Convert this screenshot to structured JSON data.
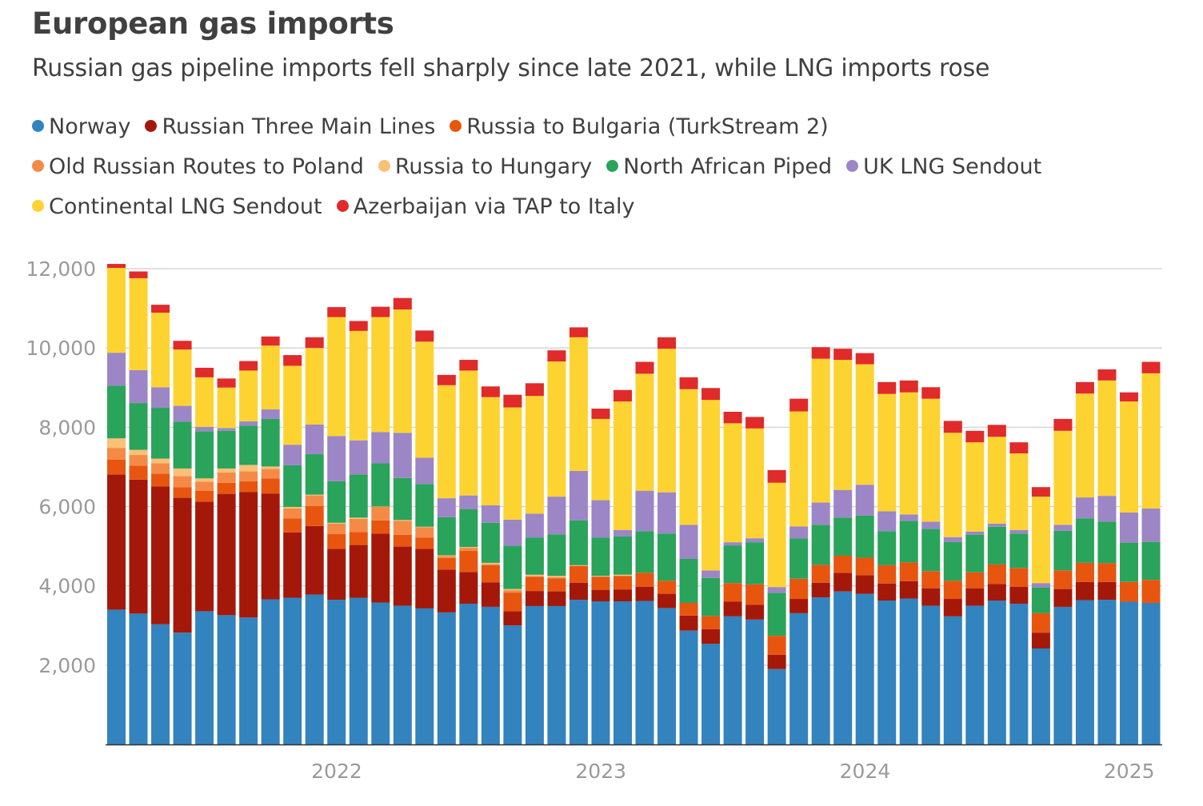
{
  "chart_data": {
    "type": "bar",
    "stacked": true,
    "title": "European gas imports",
    "subtitle": "Russian gas pipeline imports fell sharply since late 2021, while LNG imports rose",
    "xlabel": "",
    "ylabel": "",
    "ylim": [
      0,
      12000
    ],
    "yticks": [
      2000,
      4000,
      6000,
      8000,
      10000,
      12000
    ],
    "ytick_labels": [
      "2,000",
      "4,000",
      "6,000",
      "8,000",
      "10,000",
      "12,000"
    ],
    "xticks": [
      {
        "label": "2022",
        "index": 10
      },
      {
        "label": "2023",
        "index": 22
      },
      {
        "label": "2024",
        "index": 34
      },
      {
        "label": "2025",
        "index": 46
      }
    ],
    "grid": true,
    "legend_position": "top",
    "categories": [
      "Mar 2021",
      "Apr 2021",
      "May 2021",
      "Jun 2021",
      "Jul 2021",
      "Aug 2021",
      "Sep 2021",
      "Oct 2021",
      "Nov 2021",
      "Dec 2021",
      "Jan 2022",
      "Feb 2022",
      "Mar 2022",
      "Apr 2022",
      "May 2022",
      "Jun 2022",
      "Jul 2022",
      "Aug 2022",
      "Sep 2022",
      "Oct 2022",
      "Nov 2022",
      "Dec 2022",
      "Jan 2023",
      "Feb 2023",
      "Mar 2023",
      "Apr 2023",
      "May 2023",
      "Jun 2023",
      "Jul 2023",
      "Aug 2023",
      "Sep 2023",
      "Oct 2023",
      "Nov 2023",
      "Dec 2023",
      "Jan 2024",
      "Feb 2024",
      "Mar 2024",
      "Apr 2024",
      "May 2024",
      "Jun 2024",
      "Jul 2024",
      "Aug 2024",
      "Sep 2024",
      "Oct 2024",
      "Nov 2024",
      "Dec 2024",
      "Jan 2025",
      "Feb 2025"
    ],
    "series": [
      {
        "name": "Norway",
        "color": "#3283be",
        "values": [
          3400,
          3300,
          3030,
          2820,
          3360,
          3260,
          3200,
          3660,
          3700,
          3780,
          3650,
          3700,
          3580,
          3500,
          3430,
          3330,
          3550,
          3470,
          3000,
          3490,
          3490,
          3650,
          3610,
          3610,
          3620,
          3440,
          2870,
          2540,
          3230,
          3150,
          1900,
          3310,
          3710,
          3860,
          3800,
          3630,
          3680,
          3500,
          3230,
          3500,
          3630,
          3550,
          2420,
          3470,
          3640,
          3650,
          3600,
          3570
        ]
      },
      {
        "name": "Russian Three Main Lines",
        "color": "#a4180a",
        "values": [
          3410,
          3380,
          3480,
          3400,
          2760,
          3060,
          3170,
          2670,
          1650,
          1730,
          1280,
          1330,
          1740,
          1490,
          1500,
          1080,
          800,
          620,
          360,
          380,
          370,
          430,
          290,
          300,
          360,
          360,
          380,
          370,
          370,
          370,
          360,
          360,
          370,
          470,
          470,
          430,
          440,
          440,
          440,
          440,
          420,
          430,
          400,
          450,
          460,
          450,
          0,
          0
        ]
      },
      {
        "name": "Russia to Bulgaria (TurkStream 2)",
        "color": "#e8550f",
        "values": [
          370,
          350,
          320,
          270,
          280,
          280,
          270,
          380,
          350,
          500,
          380,
          330,
          330,
          300,
          290,
          290,
          530,
          430,
          470,
          360,
          330,
          420,
          330,
          340,
          350,
          330,
          320,
          330,
          470,
          520,
          480,
          510,
          450,
          430,
          440,
          460,
          470,
          430,
          460,
          400,
          490,
          470,
          490,
          470,
          480,
          470,
          500,
          580
        ]
      },
      {
        "name": "Old Russian Routes to Poland",
        "color": "#f58a47",
        "values": [
          300,
          270,
          260,
          280,
          230,
          260,
          250,
          240,
          250,
          270,
          260,
          330,
          340,
          350,
          260,
          50,
          80,
          30,
          60,
          20,
          30,
          10,
          10,
          10,
          0,
          0,
          0,
          0,
          0,
          0,
          0,
          0,
          0,
          0,
          0,
          0,
          0,
          0,
          0,
          0,
          0,
          0,
          0,
          0,
          0,
          0,
          0,
          0
        ]
      },
      {
        "name": "Russia to Hungary",
        "color": "#fbc077",
        "values": [
          240,
          130,
          120,
          190,
          80,
          100,
          160,
          60,
          40,
          20,
          20,
          30,
          10,
          20,
          10,
          20,
          20,
          30,
          30,
          30,
          30,
          10,
          10,
          20,
          0,
          0,
          0,
          0,
          0,
          0,
          0,
          0,
          0,
          0,
          0,
          0,
          0,
          0,
          0,
          0,
          0,
          0,
          0,
          0,
          0,
          0,
          0,
          0
        ]
      },
      {
        "name": "North African Piped",
        "color": "#2aa35b",
        "values": [
          1330,
          1180,
          1280,
          1180,
          1190,
          950,
          990,
          1200,
          1050,
          1020,
          1050,
          1090,
          1090,
          1060,
          1080,
          960,
          950,
          1010,
          1090,
          940,
          1050,
          1130,
          970,
          970,
          1050,
          1190,
          1110,
          960,
          950,
          1060,
          1080,
          1020,
          1010,
          960,
          1060,
          860,
          1050,
          1070,
          980,
          950,
          950,
          870,
          650,
          1000,
          1120,
          1050,
          990,
          960
        ]
      },
      {
        "name": "UK LNG Sendout",
        "color": "#9c86c6",
        "values": [
          830,
          830,
          520,
          400,
          110,
          70,
          110,
          240,
          520,
          750,
          1140,
          860,
          790,
          1140,
          660,
          480,
          350,
          440,
          660,
          600,
          950,
          1250,
          940,
          160,
          1020,
          1040,
          860,
          190,
          80,
          100,
          150,
          300,
          560,
          700,
          780,
          500,
          160,
          180,
          120,
          80,
          80,
          90,
          110,
          150,
          530,
          650,
          760,
          840
        ]
      },
      {
        "name": "Continental LNG Sendout",
        "color": "#fdd332",
        "values": [
          2140,
          2320,
          1880,
          1420,
          1250,
          1020,
          1280,
          1610,
          1990,
          1930,
          3000,
          2760,
          2900,
          3110,
          2930,
          2850,
          3150,
          2730,
          2830,
          2970,
          3410,
          3370,
          2050,
          3240,
          2950,
          3620,
          3420,
          4300,
          3000,
          2770,
          2630,
          2900,
          3630,
          3280,
          3040,
          2960,
          3080,
          3100,
          2630,
          2250,
          2190,
          1930,
          2180,
          2370,
          2620,
          2910,
          2800,
          3410
        ]
      },
      {
        "name": "Azerbaijan via TAP to Italy",
        "color": "#e02b2a",
        "values": [
          100,
          170,
          200,
          220,
          240,
          230,
          240,
          230,
          270,
          270,
          250,
          250,
          260,
          290,
          280,
          260,
          270,
          270,
          320,
          320,
          280,
          250,
          260,
          290,
          300,
          290,
          300,
          300,
          290,
          290,
          320,
          320,
          290,
          280,
          280,
          300,
          300,
          290,
          300,
          290,
          300,
          280,
          240,
          300,
          290,
          280,
          230,
          290
        ]
      }
    ]
  }
}
